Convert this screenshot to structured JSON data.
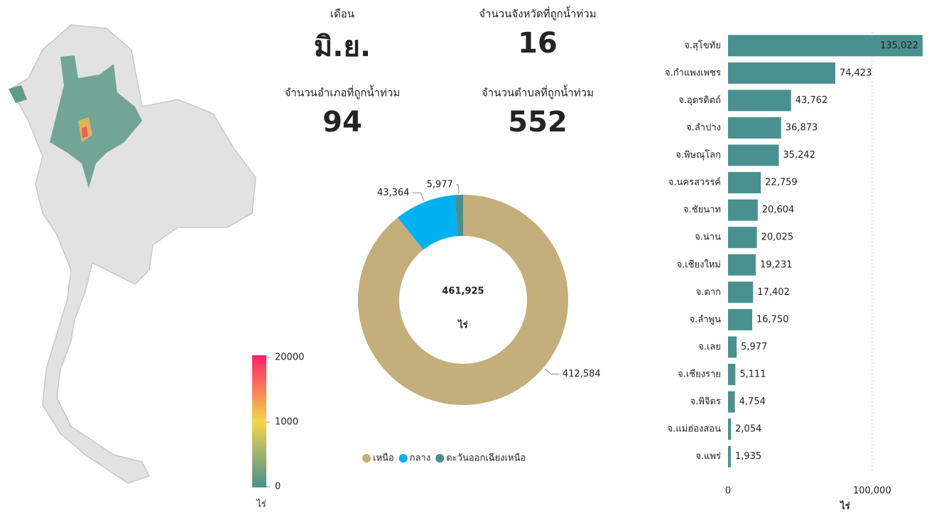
{
  "map": {
    "legend_title": "ไร่",
    "legend_ticks": [
      0,
      1000,
      20000
    ]
  },
  "kpis": [
    {
      "label": "เดือน",
      "value": "มิ.ย."
    },
    {
      "label": "จำนวนจังหวัดที่ถูกน้ำท่วม",
      "value": "16"
    },
    {
      "label": "จำนวนอำเภอที่ถูกน้ำท่วม",
      "value": "94"
    },
    {
      "label": "จำนวนตำบลที่ถูกน้ำท่วม",
      "value": "552"
    }
  ],
  "chart_data": [
    {
      "type": "donut",
      "categories": [
        "เหนือ",
        "กลาง",
        "ตะวันออกเฉียงเหนือ"
      ],
      "values": [
        412584,
        43364,
        5977
      ],
      "value_labels": [
        "412,584",
        "43,364",
        "5,977"
      ],
      "colors": [
        "#c4ae7c",
        "#00b0f0",
        "#4a8f8f"
      ],
      "center_label": "461,925",
      "center_unit": "ไร่",
      "legend": "bottom"
    },
    {
      "type": "hbar",
      "categories": [
        "จ.สุโขทัย",
        "จ.กำแพงเพชร",
        "จ.อุตรดิตถ์",
        "จ.ลำปาง",
        "จ.พิษณุโลก",
        "จ.นครสวรรค์",
        "จ.ชัยนาท",
        "จ.น่าน",
        "จ.เชียงใหม่",
        "จ.ตาก",
        "จ.ลำพูน",
        "จ.เลย",
        "จ.เชียงราย",
        "จ.พิจิตร",
        "จ.แม่ฮ่องสอน",
        "จ.แพร่"
      ],
      "values": [
        135022,
        74423,
        43762,
        36873,
        35242,
        22759,
        20604,
        20025,
        19231,
        17402,
        16750,
        5977,
        5111,
        4754,
        2054,
        1935
      ],
      "value_labels": [
        "135,022",
        "74,423",
        "43,762",
        "36,873",
        "35,242",
        "22,759",
        "20,604",
        "20,025",
        "19,231",
        "17,402",
        "16,750",
        "5,977",
        "5,111",
        "4,754",
        "2,054",
        "1,935"
      ],
      "color": "#4a9090",
      "xlim": [
        0,
        140000
      ],
      "xticks": [
        0,
        {
          "value": 100000,
          "label": "100,000"
        }
      ],
      "xlabel": "ไร่",
      "grid": true
    }
  ]
}
